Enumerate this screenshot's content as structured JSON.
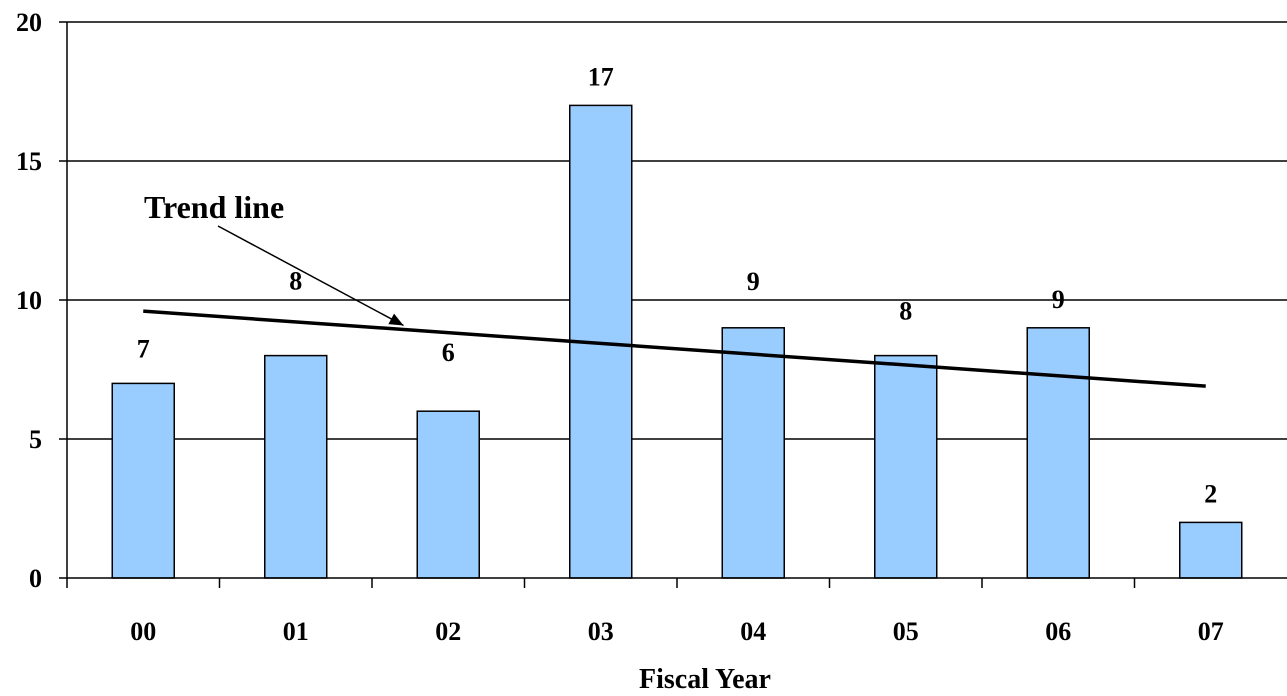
{
  "chart_data": {
    "type": "bar",
    "title": "",
    "xlabel": "Fiscal Year",
    "ylabel": "",
    "categories": [
      "00",
      "01",
      "02",
      "03",
      "04",
      "05",
      "06",
      "07"
    ],
    "series": [
      {
        "values": [
          7,
          8,
          6,
          17,
          9,
          8,
          9,
          2
        ]
      }
    ],
    "ylim": [
      0,
      20
    ],
    "yticks": [
      0,
      5,
      10,
      15,
      20
    ],
    "grid": true,
    "legend": "none",
    "bar_color": "#99ccff",
    "trend_line": {
      "label": "Trend line",
      "start": 9.6,
      "end": 6.9,
      "color": "#000000"
    }
  }
}
